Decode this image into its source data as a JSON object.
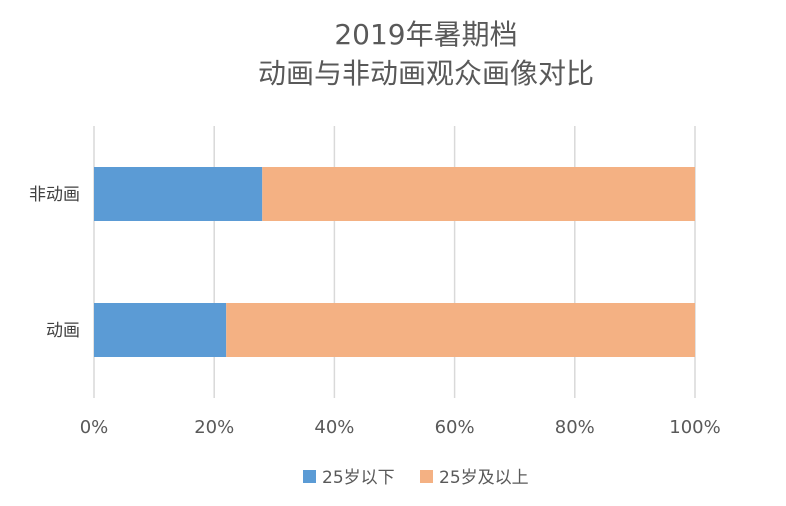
{
  "chart_data": {
    "type": "bar",
    "orientation": "horizontal",
    "stacked": true,
    "percent": true,
    "title_lines": [
      "2019年暑期档",
      "动画与非动画观众画像对比"
    ],
    "categories": [
      "非动画",
      "动画"
    ],
    "series": [
      {
        "name": "25岁以下",
        "values": [
          28,
          22
        ],
        "color": "#5b9bd5"
      },
      {
        "name": "25岁及以上",
        "values": [
          72,
          78
        ],
        "color": "#f4b183"
      }
    ],
    "xlim": [
      0,
      100
    ],
    "x_ticks": [
      "0%",
      "20%",
      "40%",
      "60%",
      "80%",
      "100%"
    ],
    "grid": true,
    "grid_color": "#d9d9d9",
    "legend_position": "bottom"
  }
}
